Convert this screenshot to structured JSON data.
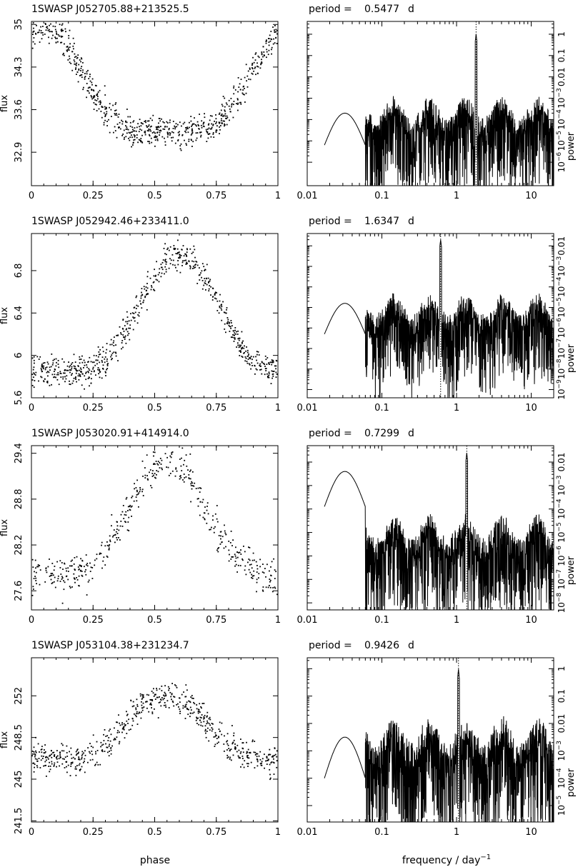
{
  "figure": {
    "lc_xlabel": "phase",
    "pg_xlabel_text": "frequency / day",
    "pg_xlabel_exp": "−1",
    "lc_ylabel": "flux",
    "pg_ylabel": "power",
    "period_prefix": "period ="
  },
  "chart_data": [
    {
      "type": "scatter",
      "title": "1SWASP J052705.88+213525.5",
      "xlabel": "phase",
      "ylabel": "flux",
      "xlim": [
        0,
        1
      ],
      "ylim": [
        32.35,
        35.05
      ],
      "xticks": [
        "0",
        "0.25",
        "0.5",
        "0.75",
        "1"
      ],
      "yticks": [
        {
          "v": 32.9,
          "t": "32.9"
        },
        {
          "v": 33.6,
          "t": "33.6"
        },
        {
          "v": 34.3,
          "t": "34.3"
        },
        {
          "v": 35.0,
          "t": "35"
        }
      ],
      "shape": {
        "mean": 33.85,
        "a1": -0.85,
        "a2": 0.25,
        "ph": 0.55,
        "noise": 0.34,
        "n": 720
      },
      "periodogram": {
        "period_value": "0.5477",
        "period_unit": "d",
        "xlim": [
          0.01,
          20
        ],
        "xticks": [
          "0.01",
          "0.1",
          "1",
          "10"
        ],
        "y_decades": [
          -6,
          -5,
          -4,
          -3,
          -2,
          -1,
          0
        ],
        "y_range": [
          -7.1,
          0.6
        ],
        "peak_freq": 1.826,
        "peak_log_power": 0.0,
        "noise_floor": -3.9,
        "low_hump_peak": -3.7,
        "line_freq": 1.826
      }
    },
    {
      "type": "scatter",
      "title": "1SWASP J052942.46+233411.0",
      "xlabel": "phase",
      "ylabel": "flux",
      "xlim": [
        0,
        1
      ],
      "ylim": [
        5.6,
        7.15
      ],
      "xticks": [
        "0",
        "0.25",
        "0.5",
        "0.75",
        "1"
      ],
      "yticks": [
        {
          "v": 5.6,
          "t": "5.6"
        },
        {
          "v": 6.0,
          "t": "6"
        },
        {
          "v": 6.4,
          "t": "6.4"
        },
        {
          "v": 6.8,
          "t": "6.8"
        }
      ],
      "shape": {
        "mean": 6.25,
        "a1": 0.55,
        "a2": 0.15,
        "ph": 0.6,
        "noise": 0.18,
        "n": 700
      },
      "periodogram": {
        "period_value": "1.6347",
        "period_unit": "d",
        "xlim": [
          0.01,
          20
        ],
        "xticks": [
          "0.01",
          "0.1",
          "1",
          "10"
        ],
        "y_decades": [
          -9,
          -8,
          -7,
          -6,
          -5,
          -4,
          -3,
          -2
        ],
        "y_range": [
          -9.4,
          -1.4
        ],
        "peak_freq": 0.612,
        "peak_log_power": -1.7,
        "noise_floor": -5.3,
        "low_hump_peak": -4.8,
        "line_freq": 0.612
      }
    },
    {
      "type": "scatter",
      "title": "1SWASP J053020.91+414914.0",
      "xlabel": "phase",
      "ylabel": "flux",
      "xlim": [
        0,
        1
      ],
      "ylim": [
        27.35,
        29.5
      ],
      "xticks": [
        "0",
        "0.25",
        "0.5",
        "0.75",
        "1"
      ],
      "yticks": [
        {
          "v": 27.6,
          "t": "27.6"
        },
        {
          "v": 28.2,
          "t": "28.2"
        },
        {
          "v": 28.8,
          "t": "28.8"
        },
        {
          "v": 29.4,
          "t": "29.4"
        }
      ],
      "shape": {
        "mean": 28.35,
        "a1": 0.75,
        "a2": 0.2,
        "ph": 0.55,
        "noise": 0.33,
        "n": 470
      },
      "periodogram": {
        "period_value": "0.7299",
        "period_unit": "d",
        "xlim": [
          0.01,
          20
        ],
        "xticks": [
          "0.01",
          "0.1",
          "1",
          "10"
        ],
        "y_decades": [
          -8,
          -7,
          -6,
          -5,
          -4,
          -3,
          -2
        ],
        "y_range": [
          -8.3,
          -1.3
        ],
        "peak_freq": 1.37,
        "peak_log_power": -1.6,
        "noise_floor": -5.2,
        "low_hump_peak": -2.4,
        "line_freq": 1.37
      }
    },
    {
      "type": "scatter",
      "title": "1SWASP J053104.38+231234.7",
      "xlabel": "phase",
      "ylabel": "flux",
      "xlim": [
        0,
        1
      ],
      "ylim": [
        241.4,
        255.2
      ],
      "xticks": [
        "0",
        "0.25",
        "0.5",
        "0.75",
        "1"
      ],
      "yticks": [
        {
          "v": 241.5,
          "t": "241.5"
        },
        {
          "v": 245,
          "t": "245"
        },
        {
          "v": 248.5,
          "t": "248.5"
        },
        {
          "v": 252,
          "t": "252"
        }
      ],
      "shape": {
        "mean": 248.6,
        "a1": 2.7,
        "a2": 0.8,
        "ph": 0.55,
        "noise": 1.7,
        "n": 620
      },
      "periodogram": {
        "period_value": "0.9426",
        "period_unit": "d",
        "xlim": [
          0.01,
          20
        ],
        "xticks": [
          "0.01",
          "0.1",
          "1",
          "10"
        ],
        "y_decades": [
          -5,
          -4,
          -3,
          -2,
          -1,
          0
        ],
        "y_range": [
          -5.6,
          0.4
        ],
        "peak_freq": 1.061,
        "peak_log_power": 0.0,
        "noise_floor": -2.7,
        "low_hump_peak": -2.5,
        "line_freq": 1.061
      }
    }
  ]
}
